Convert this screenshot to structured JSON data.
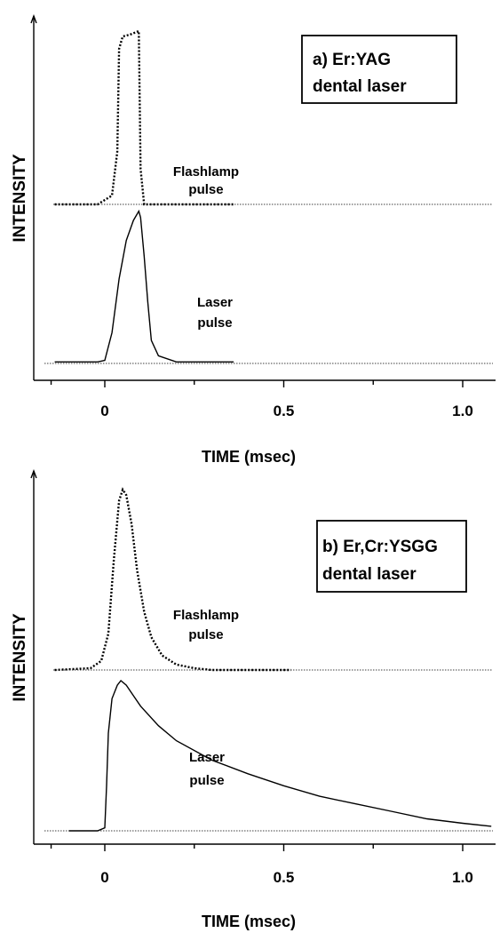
{
  "chart_data": [
    {
      "type": "line",
      "panel_label": "a) Er:YAG",
      "panel_label_2": "dental laser",
      "xlabel": "TIME (msec)",
      "ylabel": "INTENSITY",
      "xlim": [
        -0.15,
        1.08
      ],
      "x_ticks": [
        0,
        0.5,
        1.0
      ],
      "x_tick_labels": [
        "0",
        "0.5",
        "1.0"
      ],
      "series": [
        {
          "name": "Flashlamp pulse",
          "style": "dotted",
          "annotation": [
            "Flashlamp",
            "pulse"
          ],
          "points": [
            [
              -0.14,
              0
            ],
            [
              -0.02,
              0.0
            ],
            [
              0.02,
              0.05
            ],
            [
              0.035,
              0.3
            ],
            [
              0.04,
              0.88
            ],
            [
              0.05,
              0.95
            ],
            [
              0.07,
              0.96
            ],
            [
              0.095,
              0.98
            ],
            [
              0.1,
              0.2
            ],
            [
              0.11,
              0.0
            ],
            [
              0.36,
              0.0
            ]
          ]
        },
        {
          "name": "Laser pulse",
          "style": "solid",
          "annotation": [
            "Laser",
            "pulse"
          ],
          "points": [
            [
              -0.14,
              0.01
            ],
            [
              -0.02,
              0.01
            ],
            [
              0.0,
              0.02
            ],
            [
              0.02,
              0.2
            ],
            [
              0.04,
              0.55
            ],
            [
              0.06,
              0.8
            ],
            [
              0.08,
              0.93
            ],
            [
              0.095,
              0.99
            ],
            [
              0.1,
              0.95
            ],
            [
              0.11,
              0.7
            ],
            [
              0.12,
              0.4
            ],
            [
              0.13,
              0.15
            ],
            [
              0.15,
              0.05
            ],
            [
              0.2,
              0.01
            ],
            [
              0.36,
              0.01
            ]
          ]
        }
      ]
    },
    {
      "type": "line",
      "panel_label": "b) Er,Cr:YSGG",
      "panel_label_2": "dental laser",
      "xlabel": "TIME (msec)",
      "ylabel": "INTENSITY",
      "xlim": [
        -0.15,
        1.08
      ],
      "x_ticks": [
        0,
        0.5,
        1.0
      ],
      "x_tick_labels": [
        "0",
        "0.5",
        "1.0"
      ],
      "series": [
        {
          "name": "Flashlamp pulse",
          "style": "dotted",
          "annotation": [
            "Flashlamp",
            "pulse"
          ],
          "points": [
            [
              -0.14,
              0
            ],
            [
              -0.04,
              0.01
            ],
            [
              -0.01,
              0.05
            ],
            [
              0.01,
              0.2
            ],
            [
              0.025,
              0.6
            ],
            [
              0.04,
              0.93
            ],
            [
              0.05,
              0.99
            ],
            [
              0.06,
              0.96
            ],
            [
              0.075,
              0.8
            ],
            [
              0.09,
              0.55
            ],
            [
              0.11,
              0.32
            ],
            [
              0.13,
              0.18
            ],
            [
              0.16,
              0.08
            ],
            [
              0.2,
              0.03
            ],
            [
              0.25,
              0.01
            ],
            [
              0.3,
              0.0
            ],
            [
              0.52,
              0.0
            ]
          ]
        },
        {
          "name": "Laser pulse",
          "style": "solid",
          "annotation": [
            "Laser",
            "pulse"
          ],
          "points": [
            [
              -0.1,
              0.0
            ],
            [
              -0.02,
              0.0
            ],
            [
              0.0,
              0.02
            ],
            [
              0.005,
              0.3
            ],
            [
              0.01,
              0.65
            ],
            [
              0.02,
              0.88
            ],
            [
              0.035,
              0.97
            ],
            [
              0.045,
              1.0
            ],
            [
              0.06,
              0.97
            ],
            [
              0.08,
              0.9
            ],
            [
              0.1,
              0.83
            ],
            [
              0.15,
              0.7
            ],
            [
              0.2,
              0.6
            ],
            [
              0.3,
              0.47
            ],
            [
              0.4,
              0.38
            ],
            [
              0.5,
              0.3
            ],
            [
              0.6,
              0.23
            ],
            [
              0.7,
              0.18
            ],
            [
              0.8,
              0.13
            ],
            [
              0.9,
              0.08
            ],
            [
              1.0,
              0.05
            ],
            [
              1.08,
              0.03
            ]
          ]
        }
      ]
    }
  ]
}
